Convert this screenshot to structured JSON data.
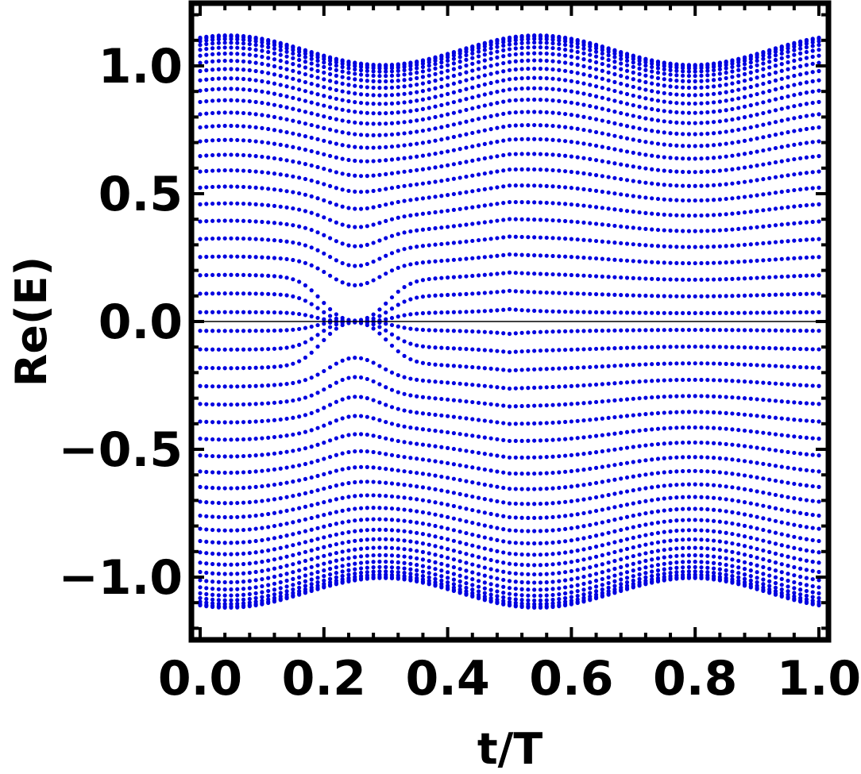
{
  "chart_data": {
    "type": "scatter",
    "title": "",
    "xlabel": "t/T",
    "ylabel": "Re(E)",
    "xlim": [
      0.0,
      1.0
    ],
    "ylim": [
      -1.25,
      1.25
    ],
    "x_ticks": [
      0.0,
      0.2,
      0.4,
      0.6,
      0.8,
      1.0
    ],
    "x_tick_labels": [
      "0.0",
      "0.2",
      "0.4",
      "0.6",
      "0.8",
      "1.0"
    ],
    "y_ticks": [
      -1.0,
      -0.5,
      0.0,
      0.5,
      1.0
    ],
    "y_tick_labels": [
      "−1.0",
      "−0.5",
      "0.0",
      "0.5",
      "1.0"
    ],
    "reference_line_y": 0.0,
    "grid": false,
    "marker_color": "#0000e0",
    "series_description_note_free": true,
    "bands": {
      "t_samples": 101,
      "band_count": 48,
      "band_energy_range": [
        -1.12,
        1.12
      ],
      "gap_closing_t": 0.25,
      "edge_max_abs": 1.12,
      "edge_min_abs_at_t": [
        [
          0.25,
          1.0
        ],
        [
          0.75,
          1.0
        ]
      ],
      "kink_t": 0.5
    }
  }
}
